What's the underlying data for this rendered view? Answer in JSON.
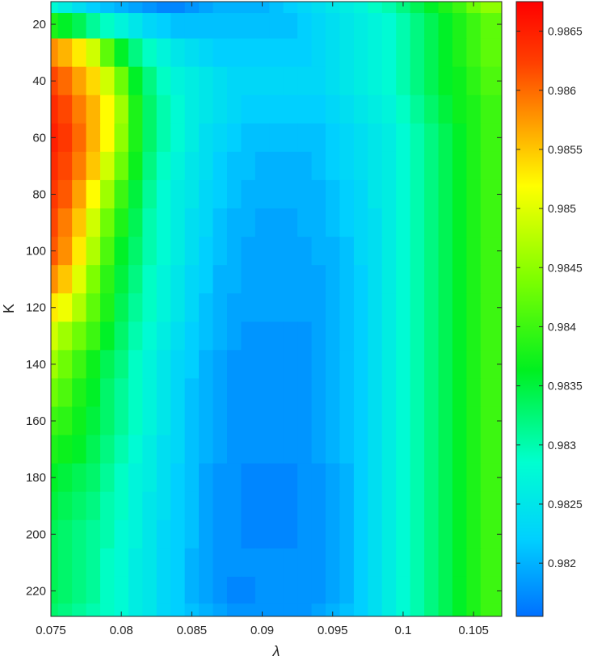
{
  "chart_data": {
    "type": "heatmap",
    "title": "",
    "xlabel": "λ",
    "ylabel": "K",
    "xlim": [
      0.075,
      0.107
    ],
    "ylim": [
      12,
      229
    ],
    "y_reversed": true,
    "x_ticks": [
      {
        "value": 0.075,
        "label": "0.075"
      },
      {
        "value": 0.08,
        "label": "0.08"
      },
      {
        "value": 0.085,
        "label": "0.085"
      },
      {
        "value": 0.09,
        "label": "0.09"
      },
      {
        "value": 0.095,
        "label": "0.095"
      },
      {
        "value": 0.1,
        "label": "0.1"
      },
      {
        "value": 0.105,
        "label": "0.105"
      }
    ],
    "y_ticks": [
      {
        "value": 20,
        "label": "20"
      },
      {
        "value": 40,
        "label": "40"
      },
      {
        "value": 60,
        "label": "60"
      },
      {
        "value": 80,
        "label": "80"
      },
      {
        "value": 100,
        "label": "100"
      },
      {
        "value": 120,
        "label": "120"
      },
      {
        "value": 140,
        "label": "140"
      },
      {
        "value": 160,
        "label": "160"
      },
      {
        "value": 180,
        "label": "180"
      },
      {
        "value": 200,
        "label": "200"
      },
      {
        "value": 220,
        "label": "220"
      }
    ],
    "colorbar": {
      "colormap": "jet",
      "range": [
        0.98155,
        0.98675
      ],
      "ticks": [
        {
          "value": 0.982,
          "label": "0.982"
        },
        {
          "value": 0.9825,
          "label": "0.9825"
        },
        {
          "value": 0.983,
          "label": "0.983"
        },
        {
          "value": 0.9835,
          "label": "0.9835"
        },
        {
          "value": 0.984,
          "label": "0.984"
        },
        {
          "value": 0.9845,
          "label": "0.9845"
        },
        {
          "value": 0.985,
          "label": "0.985"
        },
        {
          "value": 0.9855,
          "label": "0.9855"
        },
        {
          "value": 0.986,
          "label": "0.986"
        },
        {
          "value": 0.9865,
          "label": "0.9865"
        }
      ]
    },
    "x": [
      0.075,
      0.076,
      0.077,
      0.078,
      0.079,
      0.08,
      0.081,
      0.082,
      0.083,
      0.084,
      0.085,
      0.086,
      0.087,
      0.088,
      0.089,
      0.09,
      0.091,
      0.092,
      0.093,
      0.094,
      0.095,
      0.096,
      0.097,
      0.098,
      0.099,
      0.1,
      0.101,
      0.102,
      0.103,
      0.104,
      0.105,
      0.106
    ],
    "y": [
      12,
      20,
      30,
      40,
      50,
      60,
      70,
      80,
      90,
      100,
      110,
      120,
      130,
      140,
      150,
      160,
      170,
      180,
      190,
      200,
      210,
      220,
      229
    ],
    "z": [
      [
        0.9828,
        0.9826,
        0.9824,
        0.9822,
        0.9821,
        0.982,
        0.9819,
        0.9818,
        0.9817,
        0.9817,
        0.9818,
        0.9819,
        0.982,
        0.982,
        0.982,
        0.982,
        0.9821,
        0.9822,
        0.9823,
        0.9824,
        0.9825,
        0.9826,
        0.9827,
        0.9829,
        0.983,
        0.9832,
        0.9834,
        0.9836,
        0.9838,
        0.984,
        0.9843,
        0.9845
      ],
      [
        0.9838,
        0.9836,
        0.9834,
        0.9831,
        0.9829,
        0.9827,
        0.9825,
        0.9823,
        0.9822,
        0.9821,
        0.9821,
        0.9821,
        0.9821,
        0.9821,
        0.9821,
        0.9821,
        0.9821,
        0.9821,
        0.9822,
        0.9823,
        0.9824,
        0.9825,
        0.9826,
        0.9827,
        0.9828,
        0.983,
        0.9832,
        0.9834,
        0.9836,
        0.9838,
        0.984,
        0.9842
      ],
      [
        0.9858,
        0.9856,
        0.9853,
        0.9849,
        0.9842,
        0.9836,
        0.9832,
        0.9829,
        0.9827,
        0.9825,
        0.9824,
        0.9823,
        0.9822,
        0.9822,
        0.9822,
        0.9822,
        0.9822,
        0.9822,
        0.9822,
        0.9823,
        0.9824,
        0.9825,
        0.9826,
        0.9827,
        0.9828,
        0.983,
        0.9832,
        0.9834,
        0.9836,
        0.9838,
        0.984,
        0.9842
      ],
      [
        0.9862,
        0.986,
        0.9857,
        0.9854,
        0.9849,
        0.9843,
        0.9836,
        0.9832,
        0.9829,
        0.9827,
        0.9826,
        0.9825,
        0.9824,
        0.9823,
        0.9823,
        0.9823,
        0.9823,
        0.9823,
        0.9823,
        0.9823,
        0.9824,
        0.9825,
        0.9826,
        0.9827,
        0.9828,
        0.983,
        0.9832,
        0.9834,
        0.9836,
        0.9837,
        0.9839,
        0.9841
      ],
      [
        0.9864,
        0.9862,
        0.9859,
        0.9856,
        0.9852,
        0.9846,
        0.9838,
        0.9833,
        0.983,
        0.9828,
        0.9826,
        0.9825,
        0.9824,
        0.9823,
        0.9822,
        0.9822,
        0.9822,
        0.9822,
        0.9822,
        0.9822,
        0.9823,
        0.9824,
        0.9825,
        0.9826,
        0.9827,
        0.9829,
        0.9831,
        0.9833,
        0.9835,
        0.9837,
        0.9838,
        0.984
      ],
      [
        0.9865,
        0.9863,
        0.986,
        0.9856,
        0.9852,
        0.9845,
        0.9838,
        0.9833,
        0.983,
        0.9828,
        0.9826,
        0.9824,
        0.9823,
        0.9822,
        0.9821,
        0.9821,
        0.9821,
        0.9821,
        0.9821,
        0.9821,
        0.9822,
        0.9823,
        0.9824,
        0.9825,
        0.9826,
        0.9828,
        0.983,
        0.9832,
        0.9834,
        0.9836,
        0.9838,
        0.984
      ],
      [
        0.9864,
        0.9862,
        0.9859,
        0.9855,
        0.9849,
        0.9843,
        0.9837,
        0.9832,
        0.9829,
        0.9827,
        0.9825,
        0.9824,
        0.9822,
        0.9821,
        0.9821,
        0.982,
        0.982,
        0.982,
        0.982,
        0.9821,
        0.9822,
        0.9823,
        0.9824,
        0.9825,
        0.9826,
        0.9828,
        0.983,
        0.9832,
        0.9834,
        0.9836,
        0.9838,
        0.984
      ],
      [
        0.9863,
        0.9861,
        0.9857,
        0.9852,
        0.9846,
        0.984,
        0.9835,
        0.9831,
        0.9828,
        0.9826,
        0.9825,
        0.9823,
        0.9822,
        0.9821,
        0.982,
        0.982,
        0.982,
        0.982,
        0.982,
        0.982,
        0.9821,
        0.9822,
        0.9823,
        0.9825,
        0.9826,
        0.9828,
        0.983,
        0.9832,
        0.9834,
        0.9836,
        0.9838,
        0.984
      ],
      [
        0.9862,
        0.9859,
        0.9855,
        0.9849,
        0.9843,
        0.9838,
        0.9834,
        0.983,
        0.9828,
        0.9826,
        0.9824,
        0.9823,
        0.9821,
        0.982,
        0.982,
        0.9819,
        0.9819,
        0.9819,
        0.982,
        0.982,
        0.9821,
        0.9822,
        0.9823,
        0.9824,
        0.9826,
        0.9828,
        0.983,
        0.9832,
        0.9834,
        0.9836,
        0.9838,
        0.984
      ],
      [
        0.9861,
        0.9858,
        0.9853,
        0.9847,
        0.9841,
        0.9836,
        0.9833,
        0.983,
        0.9828,
        0.9826,
        0.9824,
        0.9822,
        0.9821,
        0.982,
        0.9819,
        0.9819,
        0.9819,
        0.9819,
        0.9819,
        0.982,
        0.982,
        0.9821,
        0.9823,
        0.9824,
        0.9826,
        0.9828,
        0.983,
        0.9832,
        0.9834,
        0.9836,
        0.9838,
        0.984
      ],
      [
        0.9858,
        0.9855,
        0.985,
        0.9844,
        0.9839,
        0.9835,
        0.9832,
        0.9829,
        0.9827,
        0.9825,
        0.9823,
        0.9822,
        0.982,
        0.982,
        0.9819,
        0.9819,
        0.9819,
        0.9819,
        0.9819,
        0.9819,
        0.982,
        0.9821,
        0.9822,
        0.9824,
        0.9826,
        0.9828,
        0.983,
        0.9832,
        0.9834,
        0.9836,
        0.9838,
        0.984
      ],
      [
        0.9853,
        0.9851,
        0.9847,
        0.9842,
        0.9838,
        0.9834,
        0.9831,
        0.9829,
        0.9827,
        0.9825,
        0.9823,
        0.9821,
        0.982,
        0.9819,
        0.9819,
        0.9819,
        0.9819,
        0.9819,
        0.9819,
        0.9819,
        0.982,
        0.9821,
        0.9822,
        0.9824,
        0.9826,
        0.9828,
        0.983,
        0.9832,
        0.9834,
        0.9836,
        0.9838,
        0.984
      ],
      [
        0.9849,
        0.9846,
        0.9843,
        0.984,
        0.9836,
        0.9833,
        0.983,
        0.9828,
        0.9826,
        0.9824,
        0.9822,
        0.9821,
        0.982,
        0.9819,
        0.9818,
        0.9818,
        0.9818,
        0.9818,
        0.9818,
        0.9819,
        0.982,
        0.9821,
        0.9822,
        0.9824,
        0.9826,
        0.9828,
        0.983,
        0.9832,
        0.9834,
        0.9836,
        0.9838,
        0.984
      ],
      [
        0.9846,
        0.9843,
        0.984,
        0.9837,
        0.9834,
        0.9832,
        0.9829,
        0.9827,
        0.9825,
        0.9823,
        0.9822,
        0.982,
        0.9819,
        0.9818,
        0.9818,
        0.9818,
        0.9818,
        0.9818,
        0.9818,
        0.9819,
        0.982,
        0.9821,
        0.9822,
        0.9824,
        0.9826,
        0.9828,
        0.983,
        0.9832,
        0.9834,
        0.9836,
        0.9838,
        0.984
      ],
      [
        0.9843,
        0.9841,
        0.9838,
        0.9836,
        0.9833,
        0.9831,
        0.9829,
        0.9827,
        0.9825,
        0.9823,
        0.9821,
        0.982,
        0.9819,
        0.9818,
        0.9818,
        0.9818,
        0.9818,
        0.9818,
        0.9818,
        0.9819,
        0.982,
        0.9821,
        0.9822,
        0.9824,
        0.9826,
        0.9828,
        0.983,
        0.9832,
        0.9834,
        0.9836,
        0.9838,
        0.984
      ],
      [
        0.984,
        0.9839,
        0.9837,
        0.9835,
        0.9833,
        0.9831,
        0.9829,
        0.9827,
        0.9825,
        0.9823,
        0.9821,
        0.982,
        0.9819,
        0.9818,
        0.9818,
        0.9818,
        0.9818,
        0.9818,
        0.9818,
        0.9819,
        0.982,
        0.9821,
        0.9822,
        0.9824,
        0.9826,
        0.9828,
        0.983,
        0.9832,
        0.9834,
        0.9836,
        0.9838,
        0.984
      ],
      [
        0.9838,
        0.9837,
        0.9836,
        0.9834,
        0.9832,
        0.983,
        0.9828,
        0.9826,
        0.9824,
        0.9823,
        0.9821,
        0.982,
        0.9819,
        0.9818,
        0.9818,
        0.9818,
        0.9818,
        0.9818,
        0.9818,
        0.9819,
        0.982,
        0.9821,
        0.9822,
        0.9824,
        0.9826,
        0.9828,
        0.983,
        0.9832,
        0.9834,
        0.9836,
        0.9838,
        0.984
      ],
      [
        0.9836,
        0.9835,
        0.9834,
        0.9833,
        0.9831,
        0.9829,
        0.9827,
        0.9826,
        0.9824,
        0.9822,
        0.9821,
        0.9819,
        0.9818,
        0.9818,
        0.9817,
        0.9817,
        0.9817,
        0.9817,
        0.9818,
        0.9818,
        0.9819,
        0.982,
        0.9822,
        0.9824,
        0.9826,
        0.9828,
        0.983,
        0.9832,
        0.9834,
        0.9836,
        0.9838,
        0.984
      ],
      [
        0.9835,
        0.9834,
        0.9833,
        0.9832,
        0.983,
        0.9829,
        0.9827,
        0.9825,
        0.9824,
        0.9822,
        0.9821,
        0.9819,
        0.9818,
        0.9818,
        0.9817,
        0.9817,
        0.9817,
        0.9817,
        0.9818,
        0.9818,
        0.9819,
        0.982,
        0.9822,
        0.9824,
        0.9826,
        0.9828,
        0.983,
        0.9832,
        0.9834,
        0.9836,
        0.9838,
        0.984
      ],
      [
        0.9834,
        0.9833,
        0.9832,
        0.9831,
        0.983,
        0.9828,
        0.9827,
        0.9825,
        0.9823,
        0.9822,
        0.9821,
        0.9819,
        0.9818,
        0.9818,
        0.9817,
        0.9817,
        0.9817,
        0.9817,
        0.9818,
        0.9818,
        0.9819,
        0.982,
        0.9822,
        0.9824,
        0.9826,
        0.9828,
        0.983,
        0.9832,
        0.9834,
        0.9836,
        0.9838,
        0.984
      ],
      [
        0.9834,
        0.9833,
        0.9832,
        0.9831,
        0.9829,
        0.9828,
        0.9826,
        0.9825,
        0.9823,
        0.9822,
        0.982,
        0.9819,
        0.9818,
        0.9818,
        0.9818,
        0.9818,
        0.9818,
        0.9818,
        0.9818,
        0.9818,
        0.9819,
        0.982,
        0.9822,
        0.9824,
        0.9826,
        0.9828,
        0.983,
        0.9832,
        0.9834,
        0.9836,
        0.9838,
        0.984
      ],
      [
        0.9834,
        0.9833,
        0.9832,
        0.9831,
        0.9829,
        0.9828,
        0.9826,
        0.9825,
        0.9823,
        0.9822,
        0.982,
        0.9819,
        0.9818,
        0.9817,
        0.9817,
        0.9818,
        0.9818,
        0.9818,
        0.9818,
        0.9818,
        0.9819,
        0.982,
        0.9822,
        0.9824,
        0.9826,
        0.9828,
        0.983,
        0.9832,
        0.9834,
        0.9836,
        0.9838,
        0.984
      ],
      [
        0.9833,
        0.9832,
        0.9831,
        0.983,
        0.9829,
        0.9828,
        0.9826,
        0.9825,
        0.9823,
        0.9822,
        0.9821,
        0.982,
        0.9819,
        0.9818,
        0.9818,
        0.9818,
        0.9818,
        0.9818,
        0.9818,
        0.9819,
        0.982,
        0.9821,
        0.9822,
        0.9824,
        0.9826,
        0.9828,
        0.983,
        0.9832,
        0.9834,
        0.9836,
        0.9838,
        0.984
      ]
    ]
  }
}
